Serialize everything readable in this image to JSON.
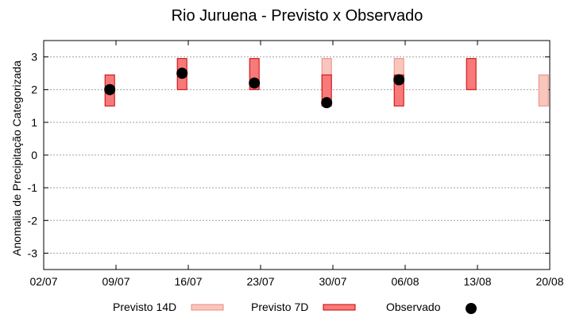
{
  "chart_data": {
    "type": "range-bar",
    "title": "Rio Juruena - Previsto x Observado",
    "xlabel": "",
    "ylabel": "Anomalia de Precipitação Categorizada",
    "xlim": [
      "2025-07-02",
      "2025-08-20"
    ],
    "ylim": [
      -3.5,
      3.5
    ],
    "x_ticks": [
      "02/07",
      "09/07",
      "16/07",
      "23/07",
      "30/07",
      "06/08",
      "13/08",
      "20/08"
    ],
    "y_ticks": [
      "3",
      "2",
      "1",
      "0",
      "-1",
      "-2",
      "-3"
    ],
    "y_tick_values": [
      3,
      2,
      1,
      0,
      -1,
      -2,
      -3
    ],
    "grid": true,
    "legend_position": "bottom",
    "colors": {
      "previsto_14d_fill": "#f9c6bd",
      "previsto_14d_stroke": "#e88b80",
      "previsto_7d_fill": "#f77a7a",
      "previsto_7d_stroke": "#cc0000",
      "observado": "#000000"
    },
    "series": [
      {
        "name": "Previsto 14D",
        "kind": "range",
        "points": [
          {
            "x": "2025-07-30",
            "low": 2.0,
            "high": 2.95
          },
          {
            "x": "2025-08-06",
            "low": 2.0,
            "high": 2.95
          },
          {
            "x": "2025-08-20",
            "low": 1.5,
            "high": 2.45
          }
        ]
      },
      {
        "name": "Previsto 7D",
        "kind": "range",
        "points": [
          {
            "x": "2025-07-09",
            "low": 1.5,
            "high": 2.45
          },
          {
            "x": "2025-07-16",
            "low": 2.0,
            "high": 2.95
          },
          {
            "x": "2025-07-23",
            "low": 2.0,
            "high": 2.95
          },
          {
            "x": "2025-07-30",
            "low": 1.5,
            "high": 2.45
          },
          {
            "x": "2025-08-06",
            "low": 1.5,
            "high": 2.45
          },
          {
            "x": "2025-08-13",
            "low": 2.0,
            "high": 2.95
          }
        ]
      },
      {
        "name": "Observado",
        "kind": "point",
        "points": [
          {
            "x": "2025-07-09",
            "y": 2.0
          },
          {
            "x": "2025-07-16",
            "y": 2.5
          },
          {
            "x": "2025-07-23",
            "y": 2.2
          },
          {
            "x": "2025-07-30",
            "y": 1.6
          },
          {
            "x": "2025-08-06",
            "y": 2.3
          }
        ]
      }
    ]
  }
}
